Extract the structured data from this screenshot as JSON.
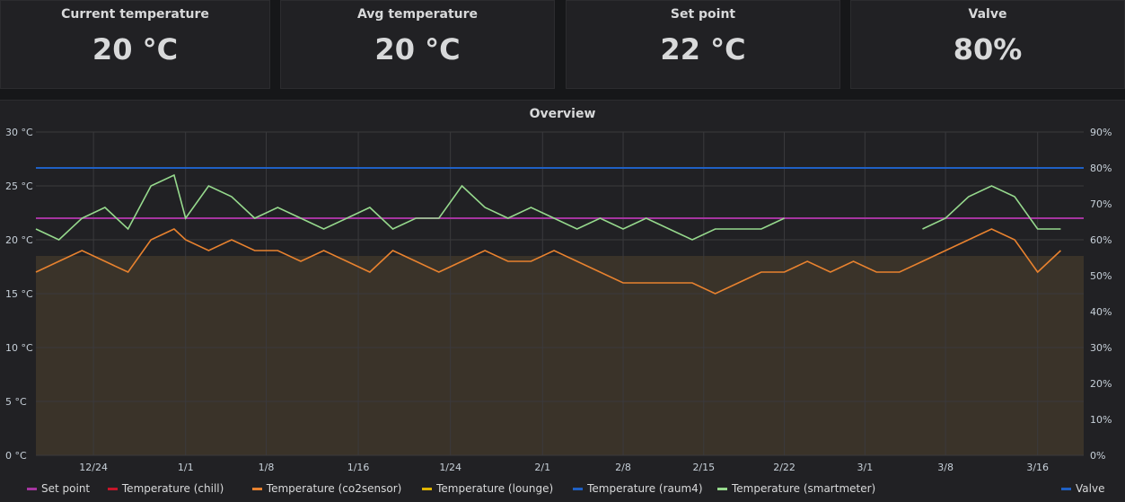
{
  "stats": [
    {
      "label": "Current temperature",
      "value": "20 °C"
    },
    {
      "label": "Avg temperature",
      "value": "20 °C"
    },
    {
      "label": "Set point",
      "value": "22 °C"
    },
    {
      "label": "Valve",
      "value": "80%"
    }
  ],
  "graph": {
    "title": "Overview",
    "legend": [
      {
        "name": "Set point",
        "color": "#a535a0"
      },
      {
        "name": "Temperature (chill)",
        "color": "#c4162a"
      },
      {
        "name": "Temperature (co2sensor)",
        "color": "#e8822f"
      },
      {
        "name": "Temperature (lounge)",
        "color": "#e0b400"
      },
      {
        "name": "Temperature (raum4)",
        "color": "#1f60c4"
      },
      {
        "name": "Temperature (smartmeter)",
        "color": "#96d98d"
      }
    ],
    "legend_right": {
      "name": "Valve",
      "color": "#1f60c4"
    }
  },
  "chart_data": {
    "type": "line",
    "title": "Overview",
    "x_ticks": [
      "12/24",
      "1/1",
      "1/8",
      "1/16",
      "1/24",
      "2/1",
      "2/8",
      "2/15",
      "2/22",
      "3/1",
      "3/8",
      "3/16"
    ],
    "y_left_ticks": [
      "0 °C",
      "5 °C",
      "10 °C",
      "15 °C",
      "20 °C",
      "25 °C",
      "30 °C"
    ],
    "y_right_ticks": [
      "0%",
      "10%",
      "20%",
      "30%",
      "40%",
      "50%",
      "60%",
      "70%",
      "80%",
      "90%"
    ],
    "ylim_left": [
      0,
      30
    ],
    "ylim_right": [
      0,
      90
    ],
    "grid": true,
    "legend_position": "bottom",
    "series": [
      {
        "name": "Set point",
        "axis": "left",
        "constant": 22
      },
      {
        "name": "Valve",
        "axis": "right",
        "constant": 80
      },
      {
        "name": "Temperature (smartmeter)",
        "axis": "left",
        "x": [
          "12/19",
          "12/21",
          "12/23",
          "12/25",
          "12/27",
          "12/29",
          "12/31",
          "1/1",
          "1/3",
          "1/5",
          "1/7",
          "1/9",
          "1/11",
          "1/13",
          "1/15",
          "1/17",
          "1/19",
          "1/21",
          "1/23",
          "1/25",
          "1/27",
          "1/29",
          "1/31",
          "2/2",
          "2/4",
          "2/6",
          "2/8",
          "2/10",
          "2/12",
          "2/14",
          "2/16",
          "2/18",
          "2/20",
          "2/22",
          "2/24",
          "2/26",
          "2/28",
          "3/2",
          "3/4",
          "3/6",
          "3/8",
          "3/10",
          "3/12",
          "3/14",
          "3/16",
          "3/18"
        ],
        "values": [
          21,
          20,
          22,
          23,
          21,
          25,
          26,
          22,
          25,
          24,
          22,
          23,
          22,
          21,
          22,
          23,
          21,
          22,
          22,
          25,
          23,
          22,
          23,
          22,
          21,
          22,
          21,
          22,
          21,
          20,
          21,
          21,
          21,
          22,
          null,
          null,
          null,
          null,
          null,
          21,
          22,
          24,
          25,
          24,
          21,
          21
        ]
      },
      {
        "name": "Temperature (co2sensor)",
        "axis": "left",
        "x": [
          "12/19",
          "12/21",
          "12/23",
          "12/25",
          "12/27",
          "12/29",
          "12/31",
          "1/1",
          "1/3",
          "1/5",
          "1/7",
          "1/9",
          "1/11",
          "1/13",
          "1/15",
          "1/17",
          "1/19",
          "1/21",
          "1/23",
          "1/25",
          "1/27",
          "1/29",
          "1/31",
          "2/2",
          "2/4",
          "2/6",
          "2/8",
          "2/10",
          "2/12",
          "2/14",
          "2/16",
          "2/18",
          "2/20",
          "2/22",
          "2/24",
          "2/26",
          "2/28",
          "3/2",
          "3/4",
          "3/6",
          "3/8",
          "3/10",
          "3/12",
          "3/14",
          "3/16",
          "3/18"
        ],
        "values": [
          17,
          18,
          19,
          18,
          17,
          20,
          21,
          20,
          19,
          20,
          19,
          19,
          18,
          19,
          18,
          17,
          19,
          18,
          17,
          18,
          19,
          18,
          18,
          19,
          18,
          17,
          16,
          16,
          16,
          16,
          15,
          16,
          17,
          17,
          18,
          17,
          18,
          17,
          17,
          18,
          19,
          20,
          21,
          20,
          17,
          19
        ]
      }
    ]
  }
}
